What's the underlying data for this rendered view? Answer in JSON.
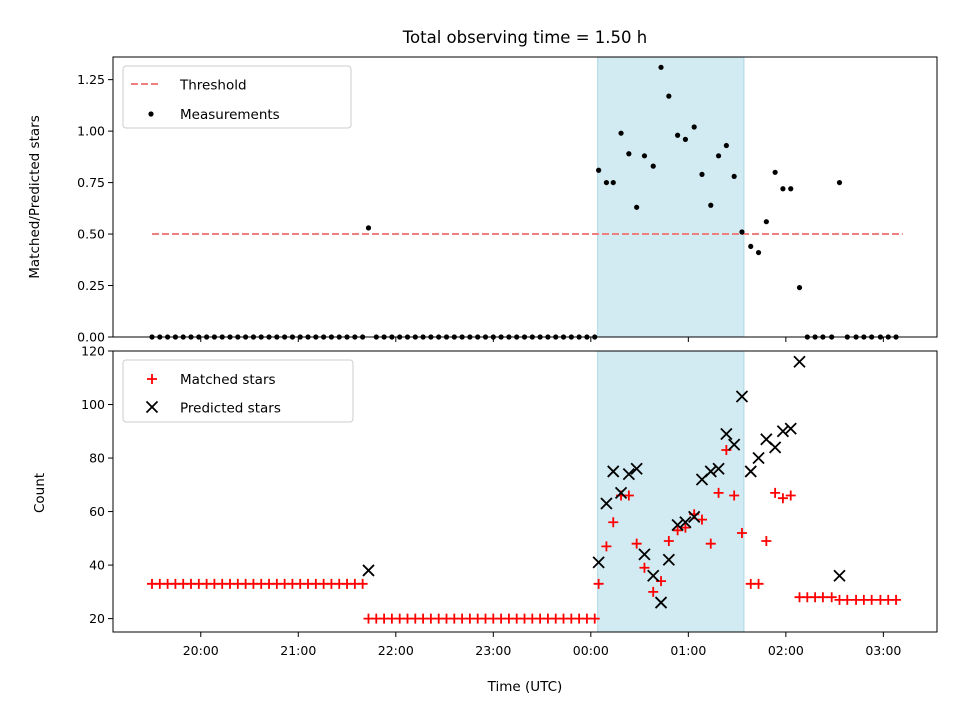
{
  "chart_data": {
    "title": "Total observing time = 1.50 h",
    "xlabel": "Time (UTC)",
    "x_ticks": [
      "20:00",
      "21:00",
      "22:00",
      "23:00",
      "00:00",
      "01:00",
      "02:00",
      "03:00"
    ],
    "x_range_hours": [
      19.1,
      27.55
    ],
    "shaded_span_hours": [
      24.07,
      25.57
    ],
    "shaded_color": "#add8e6",
    "panels": [
      {
        "type": "scatter",
        "ylabel": "Matched/Predicted stars",
        "ylim": [
          0,
          1.36
        ],
        "yticks": [
          "0.00",
          "0.25",
          "0.50",
          "0.75",
          "1.00",
          "1.25"
        ],
        "legend_position": "upper-left",
        "threshold": {
          "name": "Threshold",
          "value": 0.5,
          "x_range": [
            19.5,
            27.2
          ],
          "color": "#f08080"
        },
        "measurements": {
          "name": "Measurements",
          "color": "#000000",
          "x": [
            19.5,
            19.58,
            19.66,
            19.74,
            19.82,
            19.9,
            19.98,
            20.06,
            20.14,
            20.22,
            20.3,
            20.38,
            20.46,
            20.54,
            20.62,
            20.7,
            20.78,
            20.86,
            20.94,
            21.02,
            21.1,
            21.18,
            21.26,
            21.34,
            21.42,
            21.5,
            21.58,
            21.66,
            21.72,
            21.8,
            21.88,
            21.96,
            22.04,
            22.12,
            22.2,
            22.28,
            22.36,
            22.44,
            22.52,
            22.6,
            22.68,
            22.76,
            22.84,
            22.92,
            23.0,
            23.08,
            23.16,
            23.24,
            23.32,
            23.4,
            23.48,
            23.56,
            23.64,
            23.72,
            23.8,
            23.88,
            23.96,
            24.04,
            24.08,
            24.16,
            24.23,
            24.31,
            24.39,
            24.47,
            24.55,
            24.64,
            24.72,
            24.8,
            24.89,
            24.97,
            25.06,
            25.14,
            25.23,
            25.31,
            25.39,
            25.47,
            25.55,
            25.64,
            25.72,
            25.8,
            25.89,
            25.97,
            26.05,
            26.14,
            26.22,
            26.3,
            26.38,
            26.47,
            26.55,
            26.63,
            26.72,
            26.8,
            26.88,
            26.97,
            27.05,
            27.13
          ],
          "y": [
            0,
            0,
            0,
            0,
            0,
            0,
            0,
            0,
            0,
            0,
            0,
            0,
            0,
            0,
            0,
            0,
            0,
            0,
            0,
            0,
            0,
            0,
            0,
            0,
            0,
            0,
            0,
            0,
            0.53,
            0,
            0,
            0,
            0,
            0,
            0,
            0,
            0,
            0,
            0,
            0,
            0,
            0,
            0,
            0,
            0,
            0,
            0,
            0,
            0,
            0,
            0,
            0,
            0,
            0,
            0,
            0,
            0,
            0,
            0.81,
            0.75,
            0.75,
            0.99,
            0.89,
            0.63,
            0.88,
            0.83,
            1.31,
            1.17,
            0.98,
            0.96,
            1.02,
            0.79,
            0.64,
            0.88,
            0.93,
            0.78,
            0.51,
            0.44,
            0.41,
            0.56,
            0.8,
            0.72,
            0.72,
            0.24,
            0,
            0,
            0,
            0,
            0.75,
            0,
            0,
            0,
            0,
            0,
            0,
            0
          ]
        }
      },
      {
        "type": "scatter",
        "ylabel": "Count",
        "ylim": [
          15,
          120
        ],
        "yticks": [
          "20",
          "40",
          "60",
          "80",
          "100",
          "120"
        ],
        "legend_position": "upper-left",
        "series": [
          {
            "name": "Matched stars",
            "marker": "plus",
            "color": "#ff0000",
            "x": [
              19.5,
              19.58,
              19.66,
              19.74,
              19.82,
              19.9,
              19.98,
              20.06,
              20.14,
              20.22,
              20.3,
              20.38,
              20.46,
              20.54,
              20.62,
              20.7,
              20.78,
              20.86,
              20.94,
              21.02,
              21.1,
              21.18,
              21.26,
              21.34,
              21.42,
              21.5,
              21.58,
              21.66,
              21.72,
              21.8,
              21.88,
              21.96,
              22.04,
              22.12,
              22.2,
              22.28,
              22.36,
              22.44,
              22.52,
              22.6,
              22.68,
              22.76,
              22.84,
              22.92,
              23.0,
              23.08,
              23.16,
              23.24,
              23.32,
              23.4,
              23.48,
              23.56,
              23.64,
              23.72,
              23.8,
              23.88,
              23.96,
              24.04,
              24.08,
              24.16,
              24.23,
              24.31,
              24.39,
              24.47,
              24.55,
              24.64,
              24.72,
              24.8,
              24.89,
              24.97,
              25.06,
              25.14,
              25.23,
              25.31,
              25.39,
              25.47,
              25.55,
              25.64,
              25.72,
              25.8,
              25.89,
              25.97,
              26.05,
              26.14,
              26.22,
              26.3,
              26.38,
              26.47,
              26.55,
              26.63,
              26.72,
              26.8,
              26.88,
              26.97,
              27.05,
              27.13
            ],
            "y": [
              33,
              33,
              33,
              33,
              33,
              33,
              33,
              33,
              33,
              33,
              33,
              33,
              33,
              33,
              33,
              33,
              33,
              33,
              33,
              33,
              33,
              33,
              33,
              33,
              33,
              33,
              33,
              33,
              20,
              20,
              20,
              20,
              20,
              20,
              20,
              20,
              20,
              20,
              20,
              20,
              20,
              20,
              20,
              20,
              20,
              20,
              20,
              20,
              20,
              20,
              20,
              20,
              20,
              20,
              20,
              20,
              20,
              20,
              33,
              47,
              56,
              66,
              66,
              48,
              39,
              30,
              34,
              49,
              53,
              54,
              59,
              57,
              48,
              67,
              83,
              66,
              52,
              33,
              33,
              49,
              67,
              65,
              66,
              28,
              28,
              28,
              28,
              28,
              27,
              27,
              27,
              27,
              27,
              27,
              27,
              27
            ]
          },
          {
            "name": "Predicted stars",
            "marker": "x",
            "color": "#000000",
            "x": [
              21.72,
              24.08,
              24.16,
              24.23,
              24.31,
              24.39,
              24.47,
              24.55,
              24.64,
              24.72,
              24.8,
              24.89,
              24.97,
              25.06,
              25.14,
              25.23,
              25.31,
              25.39,
              25.47,
              25.55,
              25.64,
              25.72,
              25.8,
              25.89,
              25.97,
              26.05,
              26.14,
              26.55
            ],
            "y": [
              38,
              41,
              63,
              75,
              67,
              74,
              76,
              44,
              36,
              26,
              42,
              55,
              56,
              58,
              72,
              75,
              76,
              89,
              85,
              103,
              75,
              80,
              87,
              84,
              90,
              91,
              116,
              36
            ]
          }
        ]
      }
    ]
  }
}
